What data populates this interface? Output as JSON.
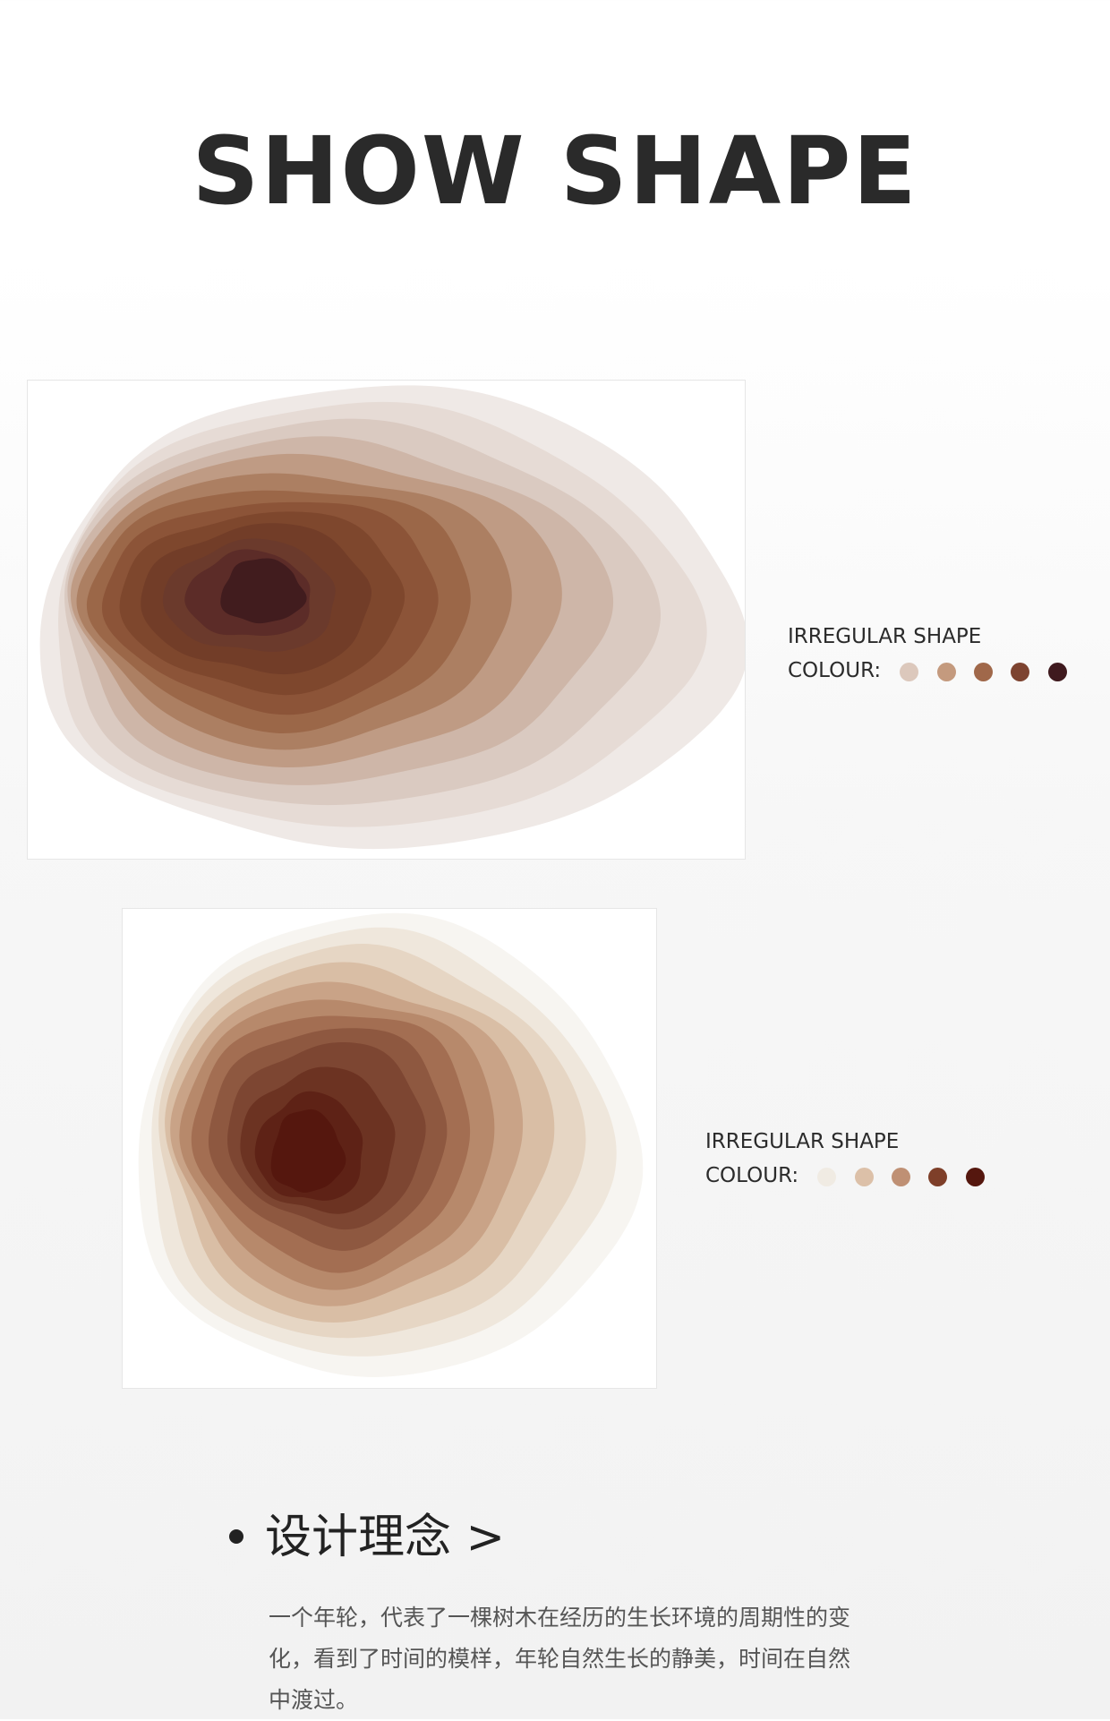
{
  "header": {
    "title": "SHOW SHAPE"
  },
  "products": [
    {
      "shape_label": "IRREGULAR SHAPE",
      "colour_label": "COLOUR:",
      "swatches": [
        "#dcc8bc",
        "#c49a7e",
        "#a0684a",
        "#7d4330",
        "#3f1a1e"
      ]
    },
    {
      "shape_label": "IRREGULAR SHAPE",
      "colour_label": "COLOUR:",
      "swatches": [
        "#f0ebe3",
        "#dcc0a8",
        "#bf9074",
        "#7e3f29",
        "#55170e"
      ]
    }
  ],
  "concept": {
    "heading": "设计理念 >",
    "body": "一个年轮，代表了一棵树木在经历的生长环境的周期性的变化，看到了时间的模样，年轮自然生长的静美，时间在自然中渡过。"
  }
}
